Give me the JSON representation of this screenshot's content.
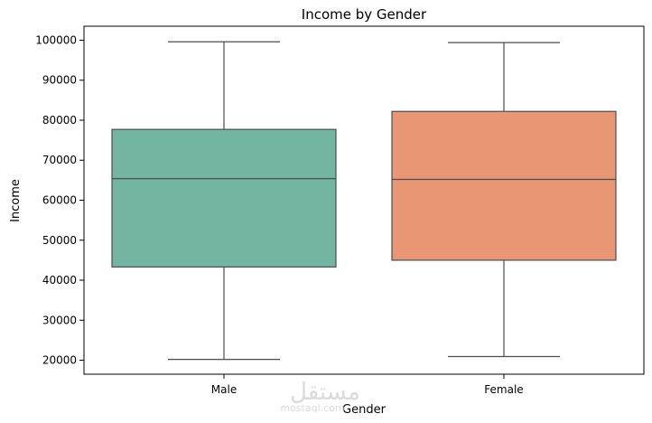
{
  "chart_data": {
    "type": "box",
    "title": "Income by Gender",
    "xlabel": "Gender",
    "ylabel": "Income",
    "categories": [
      "Male",
      "Female"
    ],
    "ylim": [
      16500,
      103500
    ],
    "yticks": [
      20000,
      30000,
      40000,
      50000,
      60000,
      70000,
      80000,
      90000,
      100000
    ],
    "grid": false,
    "boxes": [
      {
        "category": "Male",
        "min": 20200,
        "q1": 43300,
        "median": 65400,
        "q3": 77700,
        "max": 99600,
        "color": "#72b6a1"
      },
      {
        "category": "Female",
        "min": 20900,
        "q1": 45000,
        "median": 65200,
        "q3": 82200,
        "max": 99400,
        "color": "#e99675"
      }
    ],
    "colors": {
      "line": "#4d4d4d",
      "axis": "#000000"
    }
  },
  "watermark": {
    "arabic": "مستقل",
    "latin": "mostaql.com"
  }
}
